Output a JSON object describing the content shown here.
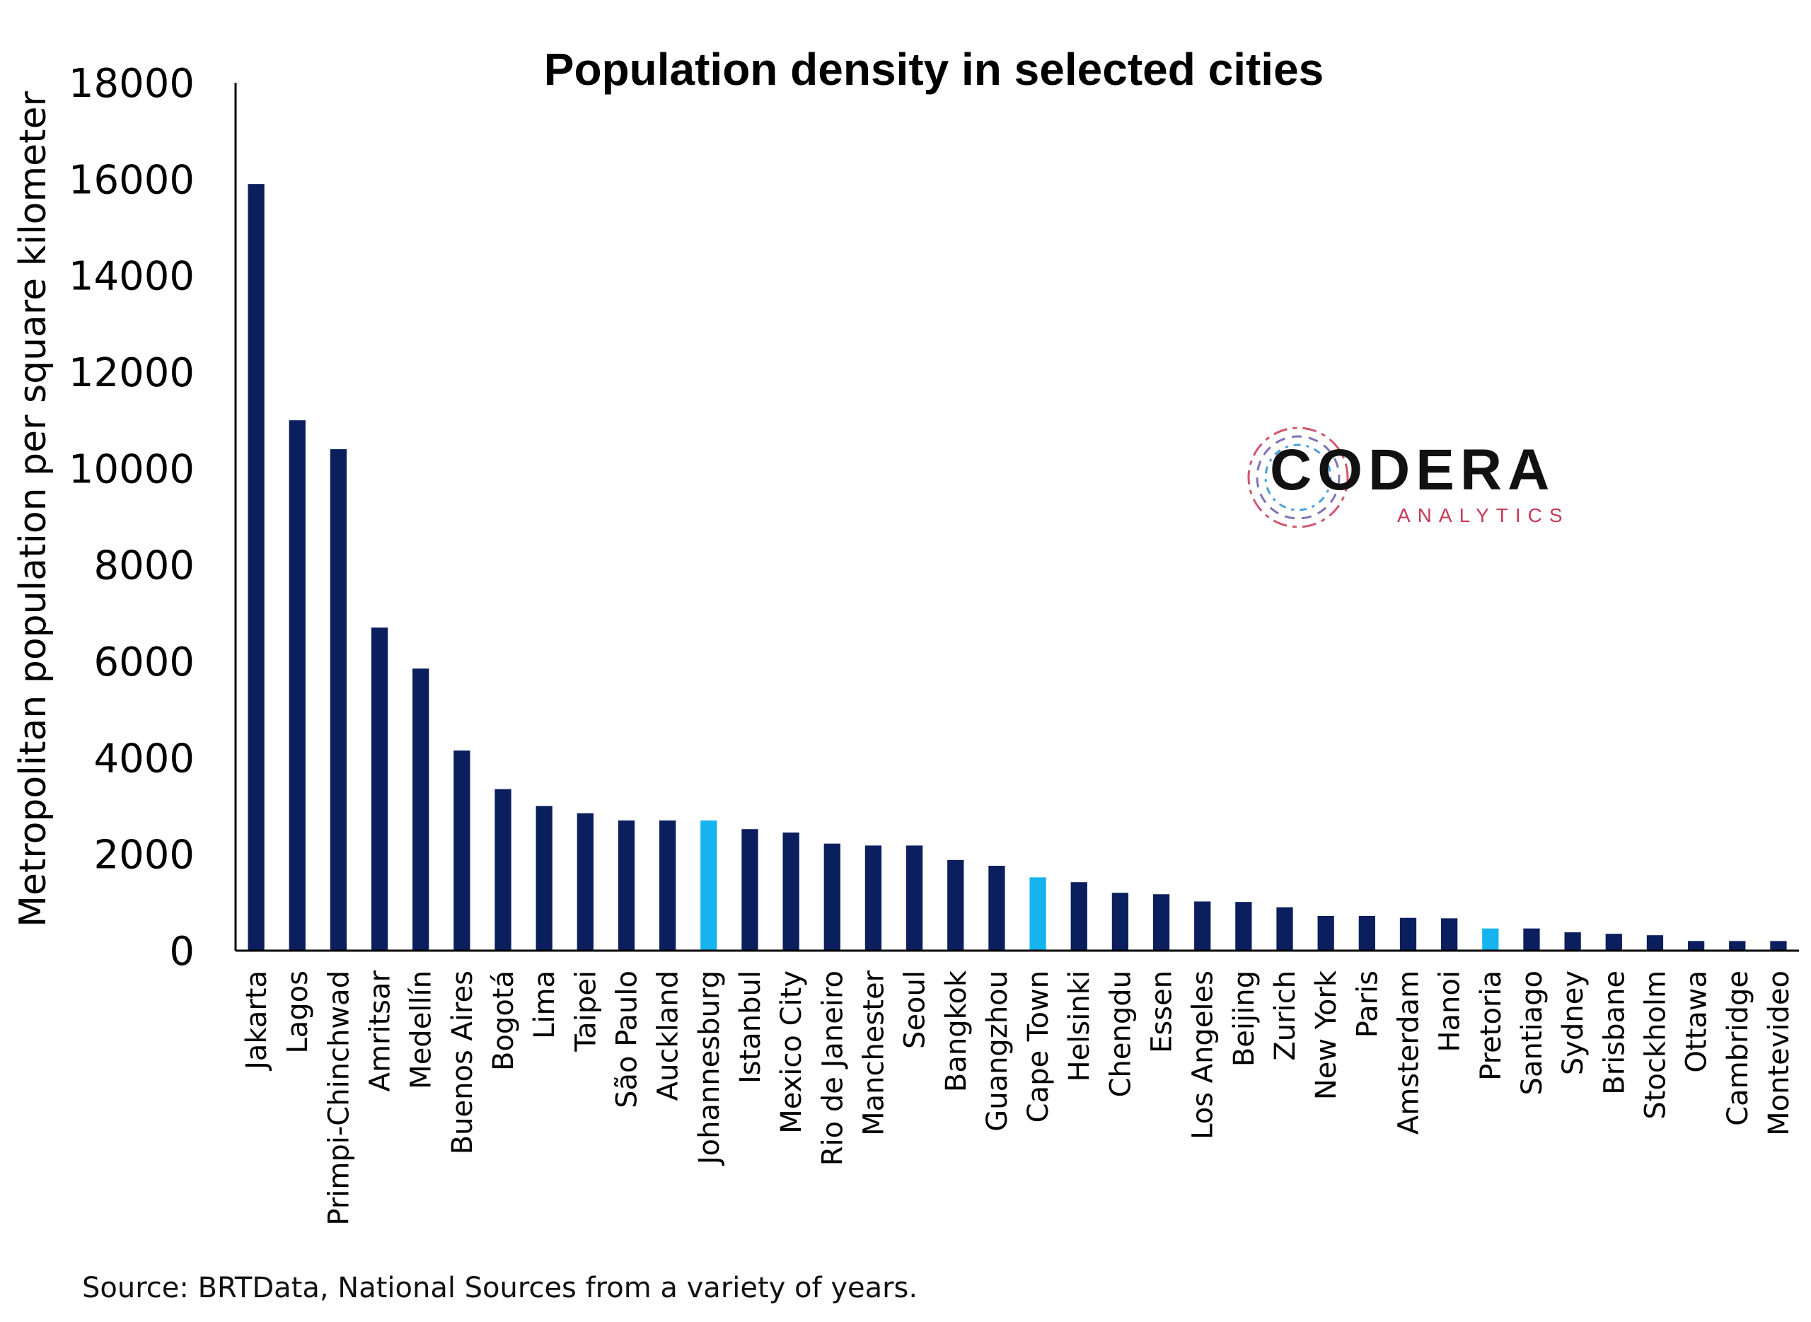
{
  "chart_data": {
    "type": "bar",
    "title": "Population density in selected cities",
    "ylabel": "Metropolitan population per square kilometer",
    "xlabel": "",
    "ylim": [
      0,
      18000
    ],
    "yticks": [
      "0",
      "2000",
      "4000",
      "6000",
      "8000",
      "10000",
      "12000",
      "14000",
      "16000",
      "18000"
    ],
    "grid": false,
    "categories": [
      "Jakarta",
      "Lagos",
      "Primpi-Chinchwad",
      "Amritsar",
      "Medellín",
      "Buenos Aires",
      "Bogotá",
      "Lima",
      "Taipei",
      "São Paulo",
      "Auckland",
      "Johannesburg",
      "Istanbul",
      "Mexico City",
      "Rio de Janeiro",
      "Manchester",
      "Seoul",
      "Bangkok",
      "Guangzhou",
      "Cape Town",
      "Helsinki",
      "Chengdu",
      "Essen",
      "Los Angeles",
      "Beijing",
      "Zurich",
      "New York",
      "Paris",
      "Amsterdam",
      "Hanoi",
      "Pretoria",
      "Santiago",
      "Sydney",
      "Brisbane",
      "Stockholm",
      "Ottawa",
      "Cambridge",
      "Montevideo"
    ],
    "values": [
      15900,
      11000,
      10400,
      6700,
      5850,
      4150,
      3350,
      3000,
      2850,
      2700,
      2700,
      2700,
      2520,
      2450,
      2220,
      2180,
      2180,
      1880,
      1760,
      1520,
      1420,
      1200,
      1170,
      1020,
      1010,
      900,
      720,
      720,
      680,
      670,
      460,
      460,
      380,
      350,
      320,
      200,
      200,
      200
    ],
    "highlight": [
      "Johannesburg",
      "Cape Town",
      "Pretoria"
    ],
    "colors": {
      "bar": "#0b1f5e",
      "highlight": "#16b4ee",
      "axis": "#000000"
    }
  },
  "logo": {
    "name": "CODERA",
    "sub": "ANALYTICS"
  },
  "source": "Source: BRTData, National Sources from a variety of years."
}
